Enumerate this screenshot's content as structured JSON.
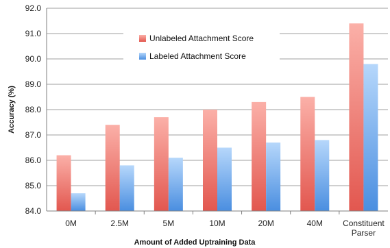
{
  "chart_data": {
    "type": "bar",
    "categories": [
      "0M",
      "2.5M",
      "5M",
      "10M",
      "20M",
      "40M",
      "Constituent\nParser"
    ],
    "series": [
      {
        "name": "Unlabeled Attachment Score",
        "values": [
          86.2,
          87.4,
          87.7,
          88.0,
          88.3,
          88.5,
          91.4
        ]
      },
      {
        "name": "Labeled Attachment Score",
        "values": [
          84.7,
          85.8,
          86.1,
          86.5,
          86.7,
          86.8,
          89.8
        ]
      }
    ],
    "xlabel": "Amount of Added Uptraining Data",
    "ylabel": "Accuracy (%)",
    "ylim": [
      84.0,
      92.0
    ],
    "yticks": [
      "84.0",
      "85.0",
      "86.0",
      "87.0",
      "88.0",
      "89.0",
      "90.0",
      "91.0",
      "92.0"
    ],
    "grid": true,
    "legend_position": "top-center",
    "colors": {
      "unlabeled_light": "#fbb0a8",
      "unlabeled_dark": "#e2574f",
      "labeled_light": "#b6d7fb",
      "labeled_dark": "#4a8ee0",
      "grid": "#7f7f7f",
      "axis": "#7f7f7f"
    }
  }
}
